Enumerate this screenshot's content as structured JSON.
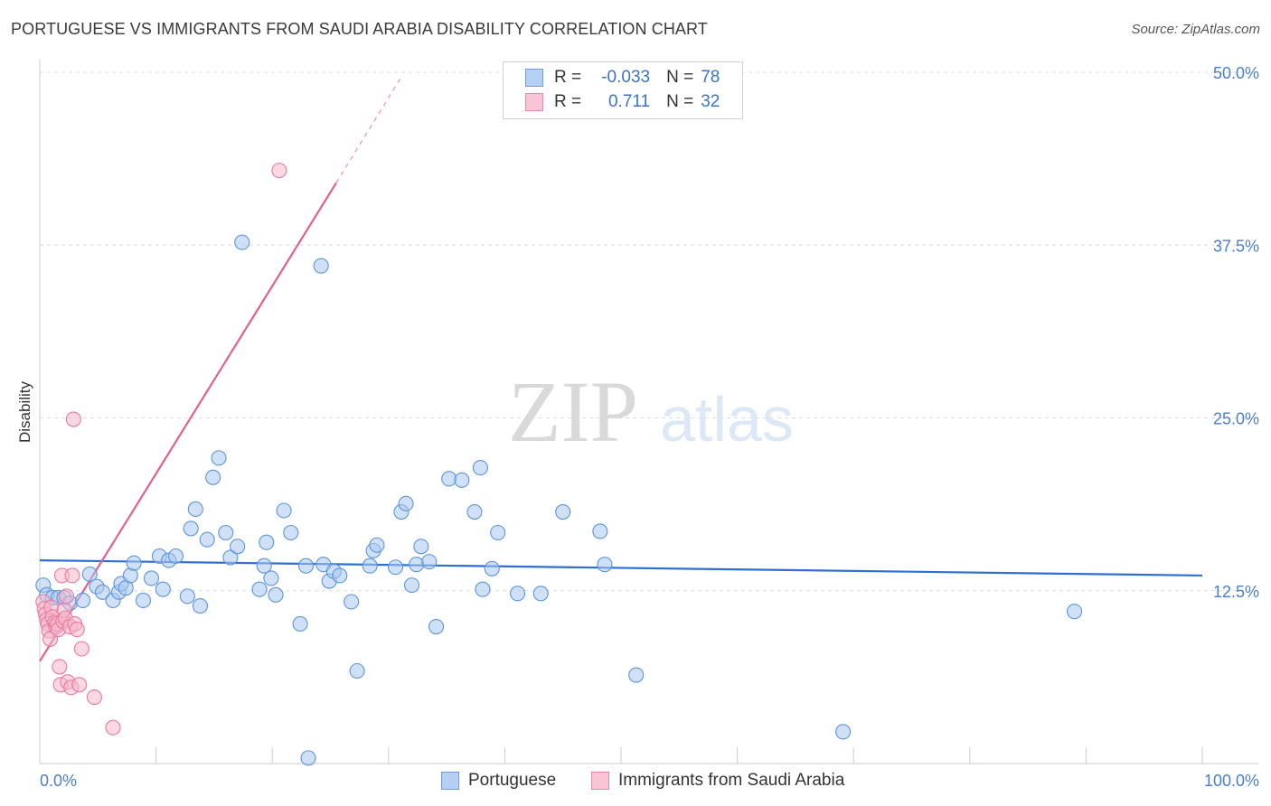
{
  "title": "PORTUGUESE VS IMMIGRANTS FROM SAUDI ARABIA DISABILITY CORRELATION CHART",
  "source": "Source: ZipAtlas.com",
  "watermark": {
    "zip": "ZIP",
    "atlas": "atlas"
  },
  "legend": {
    "r_label": "R =",
    "n_label": "N =",
    "series": [
      {
        "r": "-0.033",
        "n": "78"
      },
      {
        "r": "0.711",
        "n": "32"
      }
    ]
  },
  "chart_data": {
    "type": "scatter",
    "title": "PORTUGUESE VS IMMIGRANTS FROM SAUDI ARABIA DISABILITY CORRELATION CHART",
    "xlabel": "",
    "ylabel": "Disability",
    "xlim": [
      0,
      100
    ],
    "ylim": [
      0,
      50
    ],
    "x_tick_labels": [
      "0.0%",
      "100.0%"
    ],
    "y_ticks": [
      12.5,
      25.0,
      37.5,
      50.0
    ],
    "y_tick_labels": [
      "12.5%",
      "25.0%",
      "37.5%",
      "50.0%"
    ],
    "grid": true,
    "series": [
      {
        "name": "Portuguese",
        "color": "#5b95dd",
        "fill": "#aac8f0",
        "trend": {
          "x": [
            0,
            100
          ],
          "y": [
            14.7,
            13.6
          ]
        },
        "points": [
          [
            0.3,
            12.9
          ],
          [
            0.6,
            12.2
          ],
          [
            1.1,
            12.0
          ],
          [
            1.6,
            12.0
          ],
          [
            2.1,
            12.0
          ],
          [
            2.6,
            11.6
          ],
          [
            3.7,
            11.8
          ],
          [
            4.3,
            13.7
          ],
          [
            4.9,
            12.8
          ],
          [
            5.4,
            12.4
          ],
          [
            6.3,
            11.8
          ],
          [
            6.8,
            12.4
          ],
          [
            7.0,
            13.0
          ],
          [
            7.4,
            12.7
          ],
          [
            7.8,
            13.6
          ],
          [
            8.1,
            14.5
          ],
          [
            8.9,
            11.8
          ],
          [
            9.6,
            13.4
          ],
          [
            10.3,
            15.0
          ],
          [
            10.6,
            12.6
          ],
          [
            11.1,
            14.7
          ],
          [
            11.7,
            15.0
          ],
          [
            12.7,
            12.1
          ],
          [
            13.0,
            17.0
          ],
          [
            13.4,
            18.4
          ],
          [
            13.8,
            11.4
          ],
          [
            14.4,
            16.2
          ],
          [
            14.9,
            20.7
          ],
          [
            15.4,
            22.1
          ],
          [
            16.0,
            16.7
          ],
          [
            16.4,
            14.9
          ],
          [
            17.0,
            15.7
          ],
          [
            17.4,
            37.7
          ],
          [
            18.9,
            12.6
          ],
          [
            19.3,
            14.3
          ],
          [
            19.5,
            16.0
          ],
          [
            19.9,
            13.4
          ],
          [
            20.3,
            12.2
          ],
          [
            21.0,
            18.3
          ],
          [
            21.6,
            16.7
          ],
          [
            22.4,
            10.1
          ],
          [
            22.9,
            14.3
          ],
          [
            23.1,
            0.4
          ],
          [
            24.2,
            36.0
          ],
          [
            24.4,
            14.4
          ],
          [
            24.9,
            13.2
          ],
          [
            25.3,
            13.9
          ],
          [
            25.8,
            13.6
          ],
          [
            26.8,
            11.7
          ],
          [
            27.3,
            6.7
          ],
          [
            28.4,
            14.3
          ],
          [
            28.7,
            15.4
          ],
          [
            29.0,
            15.8
          ],
          [
            30.6,
            14.2
          ],
          [
            31.1,
            18.2
          ],
          [
            31.5,
            18.8
          ],
          [
            32.0,
            12.9
          ],
          [
            32.4,
            14.4
          ],
          [
            32.8,
            15.7
          ],
          [
            33.5,
            14.6
          ],
          [
            34.1,
            9.9
          ],
          [
            35.2,
            20.6
          ],
          [
            36.3,
            20.5
          ],
          [
            37.4,
            18.2
          ],
          [
            37.9,
            21.4
          ],
          [
            38.1,
            12.6
          ],
          [
            38.9,
            14.1
          ],
          [
            39.4,
            16.7
          ],
          [
            41.1,
            12.3
          ],
          [
            43.1,
            12.3
          ],
          [
            45.0,
            18.2
          ],
          [
            48.2,
            16.8
          ],
          [
            48.6,
            14.4
          ],
          [
            51.3,
            6.4
          ],
          [
            69.1,
            2.3
          ],
          [
            89.0,
            11.0
          ]
        ]
      },
      {
        "name": "Immigrants from Saudi Arabia",
        "color": "#e87aa0",
        "fill": "#f6b8cb",
        "trend": {
          "x": [
            0,
            25.5
          ],
          "y": [
            7.4,
            42.0
          ]
        },
        "trend_dashed": {
          "x": [
            25.5,
            31.2
          ],
          "y": [
            42.0,
            49.8
          ]
        },
        "points": [
          [
            0.3,
            11.7
          ],
          [
            0.4,
            11.2
          ],
          [
            0.5,
            10.8
          ],
          [
            0.6,
            10.4
          ],
          [
            0.7,
            10.1
          ],
          [
            0.8,
            9.6
          ],
          [
            0.9,
            9.0
          ],
          [
            1.0,
            11.3
          ],
          [
            1.1,
            10.6
          ],
          [
            1.3,
            10.2
          ],
          [
            1.4,
            9.9
          ],
          [
            1.5,
            10.1
          ],
          [
            1.6,
            9.7
          ],
          [
            1.7,
            7.0
          ],
          [
            1.8,
            5.7
          ],
          [
            1.9,
            13.6
          ],
          [
            2.0,
            10.3
          ],
          [
            2.1,
            11.1
          ],
          [
            2.2,
            10.5
          ],
          [
            2.3,
            12.1
          ],
          [
            2.4,
            5.9
          ],
          [
            2.6,
            9.9
          ],
          [
            2.7,
            5.5
          ],
          [
            2.8,
            13.6
          ],
          [
            2.9,
            24.9
          ],
          [
            3.0,
            10.1
          ],
          [
            3.2,
            9.7
          ],
          [
            3.4,
            5.7
          ],
          [
            3.6,
            8.3
          ],
          [
            4.7,
            4.8
          ],
          [
            6.3,
            2.6
          ],
          [
            20.6,
            42.9
          ]
        ]
      }
    ]
  }
}
